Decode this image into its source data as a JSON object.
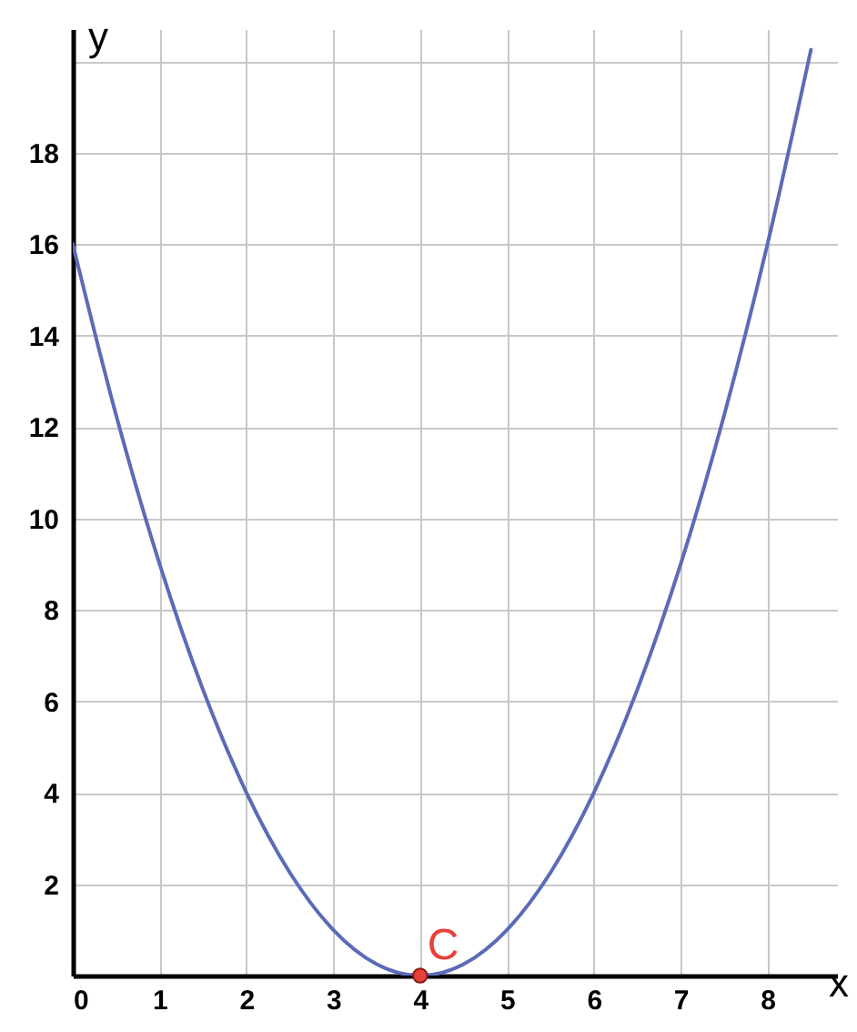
{
  "chart_data": {
    "type": "line",
    "xlabel": "x",
    "ylabel": "y",
    "xlim": [
      0,
      8.8
    ],
    "ylim": [
      0,
      20.7
    ],
    "xticks": [
      0,
      1,
      2,
      3,
      4,
      5,
      6,
      7,
      8
    ],
    "yticks": [
      {
        "value": 0,
        "label": null
      },
      2,
      4,
      6,
      8,
      10,
      12,
      14,
      16,
      18,
      {
        "value": 20,
        "label": null
      }
    ],
    "grid": true,
    "marker": "none",
    "line_style": "solid",
    "series": [
      {
        "color": "#5b6bb8",
        "x": [
          0,
          0.5,
          1,
          1.5,
          2,
          2.5,
          3,
          3.5,
          4,
          4.5,
          5,
          5.5,
          6,
          6.5,
          7,
          7.5,
          8,
          8.5
        ],
        "values": [
          16,
          12.25,
          9,
          6.25,
          4,
          2.25,
          1,
          0.25,
          0,
          0.25,
          1,
          2.25,
          4,
          6.25,
          9,
          12.25,
          16,
          20.25
        ]
      },
      {
        "type": "scatter",
        "marker": "circle",
        "color": "#e8403a",
        "x": [
          4
        ],
        "values": [
          0
        ]
      }
    ],
    "annotations": [
      {
        "text": "C",
        "x": 4,
        "y": 0
      }
    ]
  }
}
